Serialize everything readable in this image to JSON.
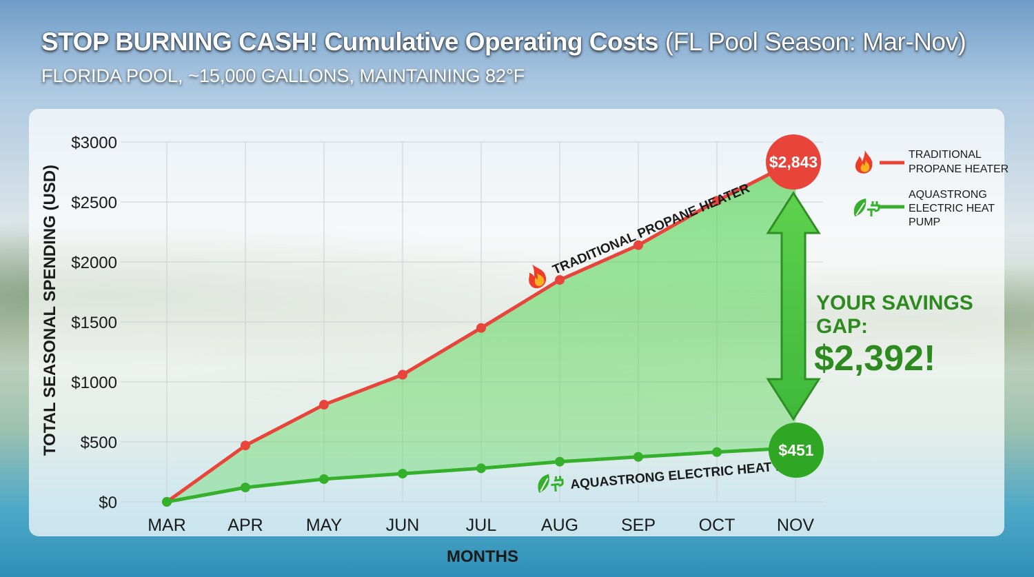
{
  "header": {
    "title_bold": "STOP BURNING CASH! Cumulative Operating Costs",
    "title_light": " (FL Pool Season: Mar-Nov)",
    "subtitle": "FLORIDA POOL, ~15,000 GALLONS, MAINTAINING 82°F"
  },
  "chart_data": {
    "type": "line",
    "title": "STOP BURNING CASH! Cumulative Operating Costs (FL Pool Season: Mar-Nov)",
    "subtitle": "FLORIDA POOL, ~15,000 GALLONS, MAINTAINING 82°F",
    "xlabel": "MONTHS",
    "ylabel": "TOTAL SEASONAL SPENDING (USD)",
    "categories": [
      "MAR",
      "APR",
      "MAY",
      "JUN",
      "JUL",
      "AUG",
      "SEP",
      "OCT",
      "NOV"
    ],
    "y_ticks": [
      "$0",
      "$500",
      "$1000",
      "$1500",
      "$2000",
      "$2500",
      "$3000"
    ],
    "ylim": [
      0,
      3000
    ],
    "grid": true,
    "legend_position": "top-right",
    "series": [
      {
        "name": "TRADITIONAL PROPANE HEATER",
        "inline_label": "TRADITIONAL PROPANE HEATER",
        "legend_lines": [
          "TRADITIONAL",
          "PROPANE HEATER"
        ],
        "color": "#e8443a",
        "values": [
          0,
          470,
          810,
          1060,
          1450,
          1850,
          2140,
          2510,
          2843
        ],
        "end_label": "$2,843"
      },
      {
        "name": "AQUASTRONG ELECTRIC HEAT PUMP",
        "inline_label": "AQUASTRONG ELECTRIC HEAT PUMP",
        "legend_lines": [
          "AQUASTRONG",
          "ELECTRIC HEAT",
          "PUMP"
        ],
        "color": "#34b02a",
        "values": [
          0,
          120,
          190,
          235,
          280,
          335,
          375,
          415,
          451
        ],
        "end_label": "$451"
      }
    ],
    "annotations": {
      "savings_line1": "YOUR SAVINGS",
      "savings_line2": "GAP:",
      "savings_amount": "$2,392!"
    }
  }
}
